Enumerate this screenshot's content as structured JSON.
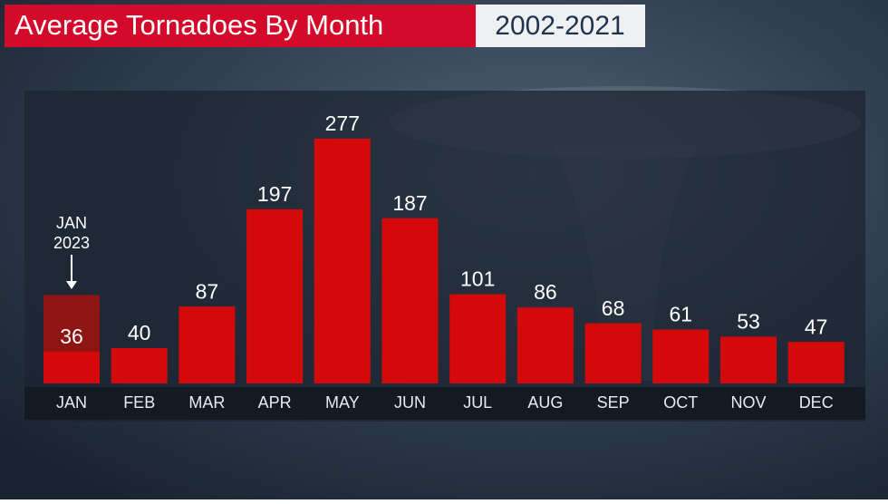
{
  "chart_data": {
    "type": "bar",
    "title": "Average Tornadoes By Month",
    "subtitle": "2002-2021",
    "categories": [
      "JAN",
      "FEB",
      "MAR",
      "APR",
      "MAY",
      "JUN",
      "JUL",
      "AUG",
      "SEP",
      "OCT",
      "NOV",
      "DEC"
    ],
    "values": [
      36,
      40,
      87,
      197,
      277,
      187,
      101,
      86,
      68,
      61,
      53,
      47
    ],
    "color": "#d40a0a",
    "annotation": {
      "lines": [
        "JAN",
        "2023"
      ],
      "value": 100,
      "color": "#8f1414"
    }
  }
}
